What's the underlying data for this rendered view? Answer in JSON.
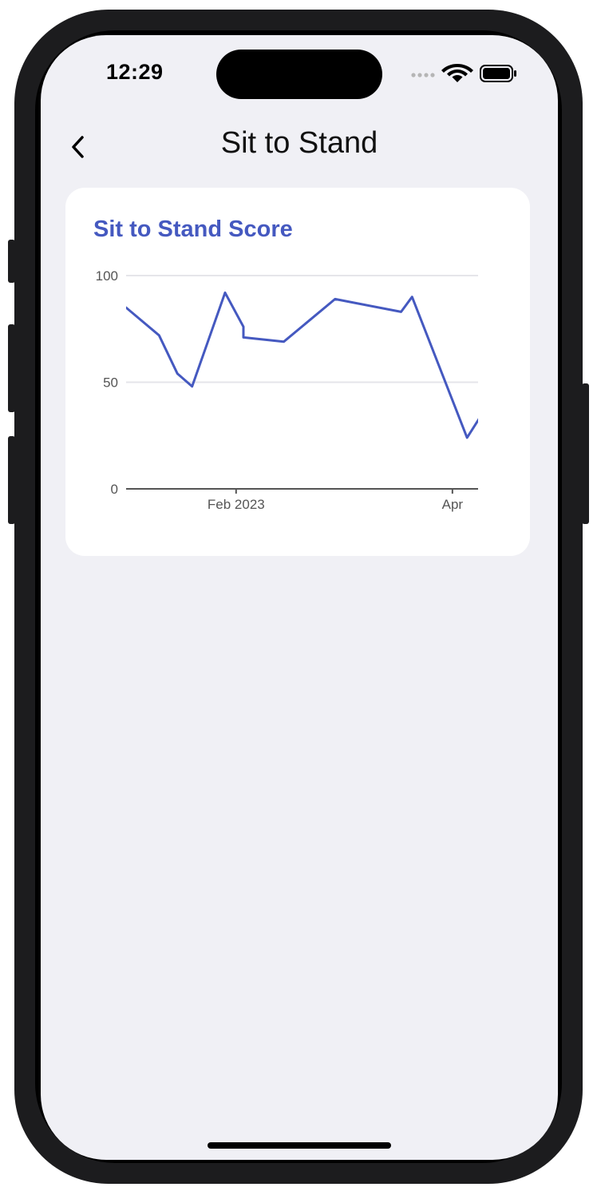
{
  "status_bar": {
    "time": "12:29"
  },
  "nav": {
    "back_icon": "chevron-left-icon",
    "title": "Sit to Stand"
  },
  "card": {
    "title": "Sit to Stand Score"
  },
  "colors": {
    "accent": "#4559c0",
    "background": "#f0f0f5",
    "card": "#ffffff",
    "grid": "#e5e5ea"
  },
  "chart_data": {
    "type": "line",
    "title": "Sit to Stand Score",
    "xlabel": "",
    "ylabel": "",
    "ylim": [
      0,
      100
    ],
    "yticks": [
      0,
      50,
      100
    ],
    "xticks": [
      {
        "label": "Feb 2023",
        "date": "2023-02-01"
      },
      {
        "label": "Apr",
        "date": "2023-04-01"
      }
    ],
    "xlim": [
      "2023-01-02",
      "2023-04-08"
    ],
    "grid": true,
    "series": [
      {
        "color": "#4559c0",
        "points": [
          {
            "x": "2023-01-02",
            "y": 85
          },
          {
            "x": "2023-01-11",
            "y": 72
          },
          {
            "x": "2023-01-16",
            "y": 54
          },
          {
            "x": "2023-01-20",
            "y": 48
          },
          {
            "x": "2023-01-29",
            "y": 92
          },
          {
            "x": "2023-02-03",
            "y": 76
          },
          {
            "x": "2023-02-03",
            "y": 71
          },
          {
            "x": "2023-02-14",
            "y": 69
          },
          {
            "x": "2023-02-28",
            "y": 89
          },
          {
            "x": "2023-03-18",
            "y": 83
          },
          {
            "x": "2023-03-21",
            "y": 90
          },
          {
            "x": "2023-04-05",
            "y": 24
          },
          {
            "x": "2023-04-12",
            "y": 43
          }
        ]
      }
    ]
  }
}
